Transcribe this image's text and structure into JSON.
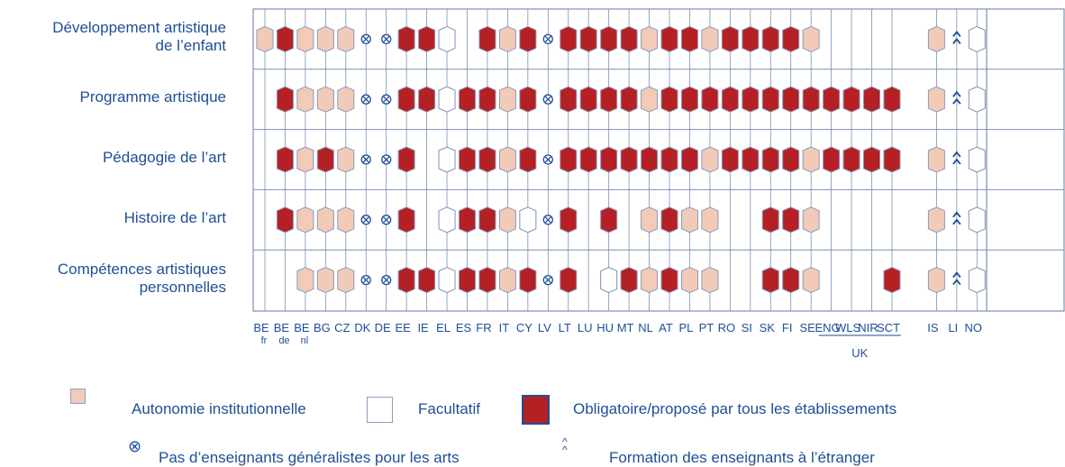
{
  "chart_data": {
    "type": "table",
    "rows": [
      "Développement artistique\nde l’enfant",
      "Programme artistique",
      "Pédagogie de l’art",
      "Histoire de l’art",
      "Compétences artistiques\npersonnelles"
    ],
    "columns": [
      {
        "code": "BE",
        "sub": "fr"
      },
      {
        "code": "BE",
        "sub": "de"
      },
      {
        "code": "BE",
        "sub": "nl"
      },
      {
        "code": "BG",
        "sub": ""
      },
      {
        "code": "CZ",
        "sub": ""
      },
      {
        "code": "DK",
        "sub": ""
      },
      {
        "code": "DE",
        "sub": ""
      },
      {
        "code": "EE",
        "sub": ""
      },
      {
        "code": "IE",
        "sub": ""
      },
      {
        "code": "EL",
        "sub": ""
      },
      {
        "code": "ES",
        "sub": ""
      },
      {
        "code": "FR",
        "sub": ""
      },
      {
        "code": "IT",
        "sub": ""
      },
      {
        "code": "CY",
        "sub": ""
      },
      {
        "code": "LV",
        "sub": ""
      },
      {
        "code": "LT",
        "sub": ""
      },
      {
        "code": "LU",
        "sub": ""
      },
      {
        "code": "HU",
        "sub": ""
      },
      {
        "code": "MT",
        "sub": ""
      },
      {
        "code": "NL",
        "sub": ""
      },
      {
        "code": "AT",
        "sub": ""
      },
      {
        "code": "PL",
        "sub": ""
      },
      {
        "code": "PT",
        "sub": ""
      },
      {
        "code": "RO",
        "sub": ""
      },
      {
        "code": "SI",
        "sub": ""
      },
      {
        "code": "SK",
        "sub": ""
      },
      {
        "code": "FI",
        "sub": ""
      },
      {
        "code": "SE",
        "sub": ""
      },
      {
        "code": "ENG",
        "sub": ""
      },
      {
        "code": "WLS",
        "sub": ""
      },
      {
        "code": "NIR",
        "sub": ""
      },
      {
        "code": "SCT",
        "sub": ""
      },
      {
        "code": "IS",
        "sub": ""
      },
      {
        "code": "LI",
        "sub": ""
      },
      {
        "code": "NO",
        "sub": ""
      }
    ],
    "uk_group_label": "UK",
    "legend_codes": {
      "A": "Autonomie institutionnelle",
      "F": "Facultatif",
      "O": "Obligatoire/proposé par tous les établissements",
      "X": "Pas d’enseignants généralistes pour les arts",
      "V": "Formation des enseignants à l’étranger"
    },
    "values": [
      [
        "A",
        "O",
        "A",
        "A",
        "A",
        "X",
        "X",
        "O",
        "O",
        "F",
        "",
        "O",
        "A",
        "O",
        "X",
        "O",
        "O",
        "O",
        "O",
        "A",
        "O",
        "O",
        "A",
        "O",
        "O",
        "O",
        "O",
        "A",
        "",
        "",
        "",
        "",
        "A",
        "V",
        "F"
      ],
      [
        "",
        "O",
        "A",
        "A",
        "A",
        "X",
        "X",
        "O",
        "O",
        "F",
        "O",
        "O",
        "A",
        "O",
        "X",
        "O",
        "O",
        "O",
        "O",
        "A",
        "O",
        "O",
        "O",
        "O",
        "O",
        "O",
        "O",
        "O",
        "O",
        "O",
        "O",
        "O",
        "A",
        "V",
        "F"
      ],
      [
        "",
        "O",
        "A",
        "O",
        "A",
        "X",
        "X",
        "O",
        "",
        "F",
        "O",
        "O",
        "A",
        "O",
        "X",
        "O",
        "O",
        "O",
        "O",
        "O",
        "O",
        "O",
        "A",
        "O",
        "O",
        "O",
        "O",
        "A",
        "O",
        "O",
        "O",
        "O",
        "A",
        "V",
        "F"
      ],
      [
        "",
        "O",
        "A",
        "A",
        "A",
        "X",
        "X",
        "O",
        "",
        "F",
        "O",
        "O",
        "A",
        "F",
        "X",
        "O",
        "",
        "O",
        "",
        "A",
        "O",
        "A",
        "A",
        "",
        "",
        "O",
        "O",
        "A",
        "",
        "",
        "",
        "",
        "A",
        "V",
        "F"
      ],
      [
        "",
        "",
        "A",
        "A",
        "A",
        "X",
        "X",
        "O",
        "O",
        "F",
        "O",
        "O",
        "A",
        "O",
        "X",
        "O",
        "",
        "F",
        "O",
        "A",
        "O",
        "A",
        "A",
        "",
        "",
        "O",
        "O",
        "A",
        "",
        "",
        "",
        "O",
        "A",
        "V",
        "F"
      ]
    ]
  },
  "legend": {
    "institutional_autonomy": "Autonomie institutionnelle",
    "optional": "Facultatif",
    "compulsory": "Obligatoire/proposé par tous les établissements",
    "no_generalist": "Pas d’enseignants généralistes pour les arts",
    "abroad": "Formation des enseignants à l’étranger"
  },
  "colors": {
    "autonomy": "#f2cbb8",
    "compulsory": "#b52025",
    "optional": "#ffffff",
    "grid": "#7d8fb5",
    "text": "#1f4e96"
  }
}
